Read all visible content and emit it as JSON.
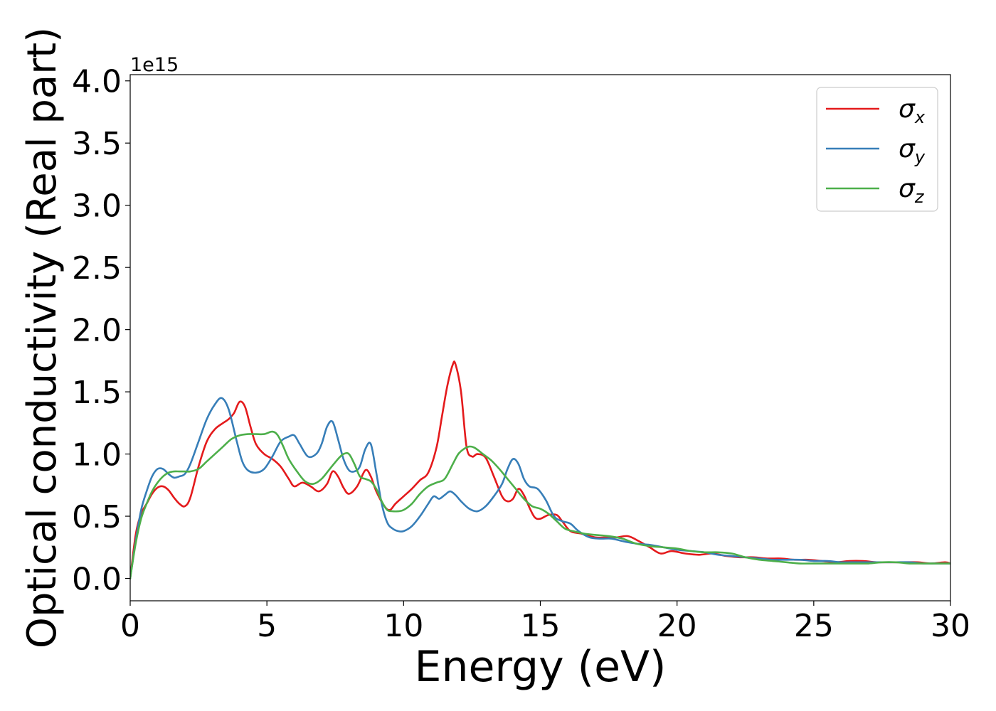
{
  "chart_data": {
    "type": "line",
    "xlabel": "Energy (eV)",
    "ylabel": "Optical conductivity (Real part)",
    "offset_text": "1e15",
    "xlim": [
      0,
      30
    ],
    "ylim": [
      -0.18,
      4.05
    ],
    "x_ticks": [
      0,
      5,
      10,
      15,
      20,
      25,
      30
    ],
    "y_ticks": [
      0.0,
      0.5,
      1.0,
      1.5,
      2.0,
      2.5,
      3.0,
      3.5,
      4.0
    ],
    "x_tick_labels": [
      "0",
      "5",
      "10",
      "15",
      "20",
      "25",
      "30"
    ],
    "y_tick_labels": [
      "0.0",
      "0.5",
      "1.0",
      "1.5",
      "2.0",
      "2.5",
      "3.0",
      "3.5",
      "4.0"
    ],
    "grid": false,
    "legend_position": "top-right",
    "series": [
      {
        "name": "σx",
        "label_main": "σ",
        "label_sub": "x",
        "color": "#e41a1c",
        "x": [
          0,
          0.2,
          0.4,
          0.6,
          0.8,
          1.0,
          1.2,
          1.4,
          1.6,
          1.8,
          2.0,
          2.2,
          2.5,
          2.8,
          3.1,
          3.4,
          3.6,
          3.8,
          4.0,
          4.2,
          4.4,
          4.6,
          4.9,
          5.2,
          5.5,
          5.8,
          6.0,
          6.3,
          6.6,
          6.9,
          7.2,
          7.4,
          7.6,
          7.8,
          8.0,
          8.3,
          8.6,
          8.8,
          9.0,
          9.3,
          9.5,
          9.7,
          10.0,
          10.3,
          10.6,
          10.9,
          11.2,
          11.4,
          11.6,
          11.8,
          11.9,
          12.1,
          12.3,
          12.5,
          12.7,
          13.0,
          13.3,
          13.6,
          13.8,
          14.0,
          14.2,
          14.4,
          14.6,
          14.8,
          15.0,
          15.3,
          15.6,
          15.8,
          16.1,
          16.5,
          17.0,
          17.5,
          17.8,
          18.2,
          18.6,
          19.0,
          19.4,
          19.8,
          20.3,
          20.8,
          21.3,
          21.8,
          22.3,
          22.8,
          23.3,
          23.8,
          24.3,
          24.8,
          25.3,
          25.8,
          26.3,
          26.8,
          27.3,
          27.8,
          28.3,
          28.8,
          29.3,
          29.8,
          30
        ],
        "y": [
          0.0,
          0.35,
          0.52,
          0.6,
          0.68,
          0.73,
          0.74,
          0.71,
          0.65,
          0.6,
          0.58,
          0.65,
          0.9,
          1.1,
          1.2,
          1.25,
          1.28,
          1.33,
          1.42,
          1.38,
          1.22,
          1.08,
          1.0,
          0.96,
          0.9,
          0.8,
          0.74,
          0.77,
          0.74,
          0.7,
          0.76,
          0.86,
          0.82,
          0.73,
          0.68,
          0.74,
          0.87,
          0.82,
          0.7,
          0.58,
          0.55,
          0.6,
          0.66,
          0.72,
          0.79,
          0.85,
          1.05,
          1.3,
          1.55,
          1.72,
          1.72,
          1.5,
          1.06,
          0.98,
          1.0,
          0.97,
          0.82,
          0.66,
          0.62,
          0.64,
          0.72,
          0.67,
          0.57,
          0.49,
          0.48,
          0.51,
          0.51,
          0.46,
          0.38,
          0.36,
          0.33,
          0.33,
          0.33,
          0.34,
          0.3,
          0.25,
          0.2,
          0.22,
          0.2,
          0.19,
          0.2,
          0.18,
          0.17,
          0.17,
          0.16,
          0.16,
          0.15,
          0.15,
          0.14,
          0.13,
          0.14,
          0.14,
          0.13,
          0.13,
          0.13,
          0.13,
          0.12,
          0.13,
          0.12
        ]
      },
      {
        "name": "σy",
        "label_main": "σ",
        "label_sub": "y",
        "color": "#377eb8",
        "x": [
          0,
          0.2,
          0.4,
          0.6,
          0.8,
          1.0,
          1.2,
          1.4,
          1.6,
          1.8,
          2.0,
          2.2,
          2.5,
          2.8,
          3.1,
          3.35,
          3.6,
          3.9,
          4.1,
          4.3,
          4.6,
          4.9,
          5.2,
          5.5,
          5.8,
          6.0,
          6.2,
          6.5,
          6.8,
          7.0,
          7.2,
          7.4,
          7.6,
          7.8,
          8.0,
          8.2,
          8.4,
          8.6,
          8.8,
          9.0,
          9.2,
          9.4,
          9.6,
          9.8,
          10.0,
          10.3,
          10.6,
          10.9,
          11.1,
          11.3,
          11.5,
          11.7,
          11.9,
          12.1,
          12.4,
          12.7,
          13.0,
          13.3,
          13.6,
          13.8,
          14.0,
          14.2,
          14.4,
          14.6,
          14.9,
          15.2,
          15.5,
          15.8,
          16.1,
          16.4,
          16.8,
          17.2,
          17.6,
          18.0,
          18.5,
          19.0,
          19.5,
          20.0,
          20.5,
          21.0,
          21.5,
          22.0,
          22.5,
          23.0,
          23.5,
          24.0,
          24.5,
          25.0,
          25.5,
          26.0,
          26.5,
          27.0,
          27.5,
          28.0,
          28.5,
          29.0,
          29.5,
          30
        ],
        "y": [
          0.0,
          0.3,
          0.55,
          0.7,
          0.82,
          0.88,
          0.88,
          0.84,
          0.81,
          0.82,
          0.84,
          0.92,
          1.1,
          1.28,
          1.4,
          1.45,
          1.36,
          1.1,
          0.94,
          0.87,
          0.85,
          0.88,
          0.98,
          1.1,
          1.14,
          1.15,
          1.08,
          0.98,
          1.0,
          1.08,
          1.22,
          1.26,
          1.12,
          0.96,
          0.87,
          0.86,
          0.9,
          1.04,
          1.08,
          0.85,
          0.6,
          0.45,
          0.4,
          0.38,
          0.38,
          0.42,
          0.5,
          0.6,
          0.66,
          0.64,
          0.67,
          0.7,
          0.67,
          0.62,
          0.56,
          0.54,
          0.58,
          0.66,
          0.76,
          0.88,
          0.96,
          0.92,
          0.8,
          0.74,
          0.72,
          0.63,
          0.5,
          0.46,
          0.44,
          0.38,
          0.33,
          0.32,
          0.32,
          0.3,
          0.28,
          0.27,
          0.25,
          0.23,
          0.22,
          0.21,
          0.19,
          0.18,
          0.17,
          0.16,
          0.15,
          0.15,
          0.15,
          0.14,
          0.14,
          0.13,
          0.13,
          0.13,
          0.13,
          0.13,
          0.13,
          0.12,
          0.12,
          0.12
        ]
      },
      {
        "name": "σz",
        "label_main": "σ",
        "label_sub": "z",
        "color": "#4daf4a",
        "x": [
          0,
          0.2,
          0.4,
          0.6,
          0.8,
          1.0,
          1.2,
          1.4,
          1.6,
          1.8,
          2.0,
          2.2,
          2.5,
          2.8,
          3.1,
          3.4,
          3.7,
          4.0,
          4.3,
          4.6,
          4.9,
          5.2,
          5.4,
          5.6,
          5.8,
          6.1,
          6.4,
          6.7,
          7.0,
          7.3,
          7.6,
          7.8,
          8.0,
          8.2,
          8.4,
          8.6,
          8.8,
          9.0,
          9.2,
          9.4,
          9.6,
          9.8,
          10.0,
          10.3,
          10.6,
          10.9,
          11.2,
          11.5,
          11.8,
          12.0,
          12.2,
          12.4,
          12.6,
          12.9,
          13.2,
          13.5,
          13.8,
          14.1,
          14.4,
          14.7,
          15.0,
          15.3,
          15.6,
          15.9,
          16.2,
          16.6,
          17.0,
          17.5,
          18.0,
          18.5,
          19.0,
          19.5,
          20.0,
          20.5,
          21.0,
          21.5,
          22.0,
          22.5,
          23.0,
          23.5,
          24.0,
          24.5,
          25.0,
          25.5,
          26.0,
          26.5,
          27.0,
          27.5,
          28.0,
          28.5,
          29.0,
          29.5,
          30
        ],
        "y": [
          0.0,
          0.28,
          0.48,
          0.6,
          0.7,
          0.77,
          0.82,
          0.85,
          0.86,
          0.86,
          0.86,
          0.86,
          0.88,
          0.94,
          1.0,
          1.06,
          1.12,
          1.15,
          1.16,
          1.16,
          1.16,
          1.18,
          1.15,
          1.06,
          0.96,
          0.86,
          0.78,
          0.76,
          0.8,
          0.88,
          0.96,
          1.0,
          1.0,
          0.92,
          0.82,
          0.8,
          0.78,
          0.72,
          0.62,
          0.55,
          0.54,
          0.54,
          0.55,
          0.6,
          0.68,
          0.74,
          0.77,
          0.8,
          0.92,
          1.0,
          1.04,
          1.06,
          1.05,
          1.0,
          0.95,
          0.88,
          0.8,
          0.72,
          0.64,
          0.58,
          0.56,
          0.52,
          0.46,
          0.4,
          0.38,
          0.36,
          0.35,
          0.34,
          0.32,
          0.28,
          0.26,
          0.25,
          0.24,
          0.22,
          0.21,
          0.21,
          0.2,
          0.17,
          0.15,
          0.14,
          0.13,
          0.12,
          0.12,
          0.12,
          0.12,
          0.12,
          0.12,
          0.13,
          0.13,
          0.12,
          0.12,
          0.12,
          0.12
        ]
      }
    ]
  }
}
